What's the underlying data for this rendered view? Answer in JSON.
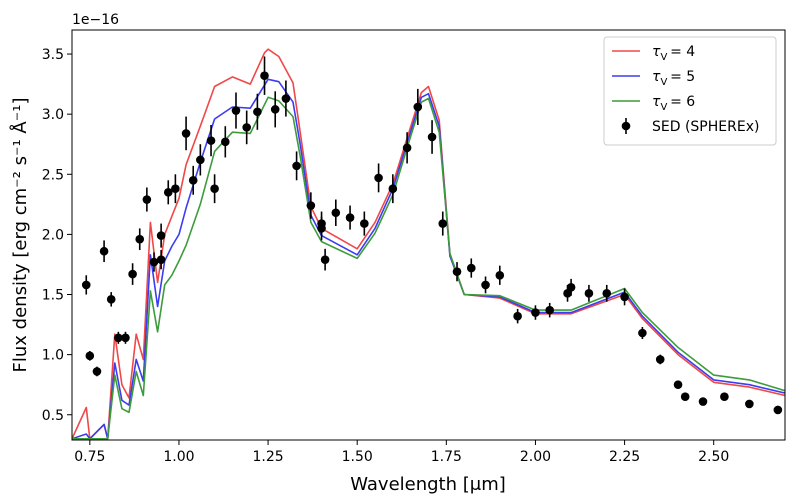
{
  "chart_data": {
    "type": "line",
    "xlabel": "Wavelength [μm]",
    "ylabel": "Flux density [erg cm⁻² s⁻¹ Å⁻¹]",
    "y_offset_label": "1e−16",
    "xlim": [
      0.7,
      2.7
    ],
    "ylim": [
      0.29,
      3.7
    ],
    "x_ticks": [
      0.75,
      1.0,
      1.25,
      1.5,
      1.75,
      2.0,
      2.25,
      2.5
    ],
    "y_ticks": [
      0.5,
      1.0,
      1.5,
      2.0,
      2.5,
      3.0,
      3.5
    ],
    "legend_position": "top-right",
    "series": [
      {
        "name": "τ_V = 4",
        "label_var": "τ",
        "label_sub": "V",
        "label_value": "= 4",
        "color": "#f04848",
        "points": [
          [
            0.7,
            0.3
          ],
          [
            0.74,
            0.56
          ],
          [
            0.75,
            0.3
          ],
          [
            0.79,
            0.42
          ],
          [
            0.8,
            0.3
          ],
          [
            0.82,
            1.17
          ],
          [
            0.84,
            0.75
          ],
          [
            0.86,
            0.64
          ],
          [
            0.88,
            1.17
          ],
          [
            0.9,
            0.96
          ],
          [
            0.92,
            2.1
          ],
          [
            0.94,
            1.6
          ],
          [
            0.96,
            2.0
          ],
          [
            0.98,
            2.15
          ],
          [
            1.0,
            2.3
          ],
          [
            1.02,
            2.58
          ],
          [
            1.06,
            2.9
          ],
          [
            1.1,
            3.23
          ],
          [
            1.15,
            3.31
          ],
          [
            1.2,
            3.25
          ],
          [
            1.24,
            3.51
          ],
          [
            1.25,
            3.54
          ],
          [
            1.28,
            3.48
          ],
          [
            1.32,
            3.26
          ],
          [
            1.34,
            2.85
          ],
          [
            1.37,
            2.23
          ],
          [
            1.4,
            2.05
          ],
          [
            1.5,
            1.88
          ],
          [
            1.55,
            2.1
          ],
          [
            1.6,
            2.42
          ],
          [
            1.64,
            2.8
          ],
          [
            1.68,
            3.18
          ],
          [
            1.7,
            3.23
          ],
          [
            1.73,
            2.95
          ],
          [
            1.76,
            1.84
          ],
          [
            1.8,
            1.5
          ],
          [
            1.9,
            1.47
          ],
          [
            2.0,
            1.34
          ],
          [
            2.1,
            1.34
          ],
          [
            2.25,
            1.5
          ],
          [
            2.3,
            1.3
          ],
          [
            2.4,
            1.0
          ],
          [
            2.5,
            0.77
          ],
          [
            2.6,
            0.73
          ],
          [
            2.7,
            0.66
          ]
        ]
      },
      {
        "name": "τ_V = 5",
        "label_var": "τ",
        "label_sub": "V",
        "label_value": "= 5",
        "color": "#3c3cf0",
        "points": [
          [
            0.7,
            0.3
          ],
          [
            0.74,
            0.34
          ],
          [
            0.75,
            0.3
          ],
          [
            0.79,
            0.42
          ],
          [
            0.8,
            0.3
          ],
          [
            0.82,
            0.93
          ],
          [
            0.84,
            0.62
          ],
          [
            0.86,
            0.58
          ],
          [
            0.88,
            0.96
          ],
          [
            0.9,
            0.78
          ],
          [
            0.92,
            1.83
          ],
          [
            0.94,
            1.4
          ],
          [
            0.96,
            1.78
          ],
          [
            0.98,
            1.9
          ],
          [
            1.0,
            2.0
          ],
          [
            1.02,
            2.22
          ],
          [
            1.06,
            2.6
          ],
          [
            1.1,
            2.96
          ],
          [
            1.15,
            3.06
          ],
          [
            1.2,
            3.05
          ],
          [
            1.25,
            3.29
          ],
          [
            1.28,
            3.27
          ],
          [
            1.32,
            3.1
          ],
          [
            1.34,
            2.75
          ],
          [
            1.37,
            2.16
          ],
          [
            1.4,
            1.99
          ],
          [
            1.5,
            1.83
          ],
          [
            1.55,
            2.05
          ],
          [
            1.6,
            2.38
          ],
          [
            1.64,
            2.76
          ],
          [
            1.68,
            3.14
          ],
          [
            1.7,
            3.17
          ],
          [
            1.73,
            2.9
          ],
          [
            1.76,
            1.82
          ],
          [
            1.8,
            1.5
          ],
          [
            1.9,
            1.48
          ],
          [
            2.0,
            1.35
          ],
          [
            2.1,
            1.35
          ],
          [
            2.25,
            1.52
          ],
          [
            2.3,
            1.32
          ],
          [
            2.4,
            1.02
          ],
          [
            2.5,
            0.79
          ],
          [
            2.6,
            0.75
          ],
          [
            2.7,
            0.68
          ]
        ]
      },
      {
        "name": "τ_V = 6",
        "label_var": "τ",
        "label_sub": "V",
        "label_value": "= 6",
        "color": "#3c9c3c",
        "points": [
          [
            0.7,
            0.3
          ],
          [
            0.74,
            0.3
          ],
          [
            0.75,
            0.3
          ],
          [
            0.79,
            0.3
          ],
          [
            0.8,
            0.3
          ],
          [
            0.82,
            0.83
          ],
          [
            0.84,
            0.55
          ],
          [
            0.86,
            0.52
          ],
          [
            0.88,
            0.86
          ],
          [
            0.9,
            0.66
          ],
          [
            0.92,
            1.53
          ],
          [
            0.94,
            1.19
          ],
          [
            0.96,
            1.58
          ],
          [
            0.98,
            1.66
          ],
          [
            1.0,
            1.78
          ],
          [
            1.02,
            1.91
          ],
          [
            1.06,
            2.25
          ],
          [
            1.1,
            2.69
          ],
          [
            1.15,
            2.85
          ],
          [
            1.2,
            2.84
          ],
          [
            1.25,
            3.14
          ],
          [
            1.28,
            3.11
          ],
          [
            1.32,
            2.98
          ],
          [
            1.34,
            2.65
          ],
          [
            1.37,
            2.1
          ],
          [
            1.4,
            1.94
          ],
          [
            1.5,
            1.8
          ],
          [
            1.55,
            2.01
          ],
          [
            1.6,
            2.33
          ],
          [
            1.64,
            2.72
          ],
          [
            1.68,
            3.1
          ],
          [
            1.7,
            3.13
          ],
          [
            1.73,
            2.85
          ],
          [
            1.76,
            1.84
          ],
          [
            1.8,
            1.5
          ],
          [
            1.9,
            1.49
          ],
          [
            2.0,
            1.37
          ],
          [
            2.1,
            1.37
          ],
          [
            2.25,
            1.55
          ],
          [
            2.3,
            1.35
          ],
          [
            2.4,
            1.06
          ],
          [
            2.5,
            0.83
          ],
          [
            2.6,
            0.79
          ],
          [
            2.7,
            0.7
          ]
        ]
      }
    ],
    "scatter": {
      "name": "SED (SPHEREx)",
      "color": "#000000",
      "points": [
        [
          0.74,
          1.58,
          0.08
        ],
        [
          0.75,
          0.99,
          0.04
        ],
        [
          0.77,
          0.86,
          0.04
        ],
        [
          0.79,
          1.86,
          0.09
        ],
        [
          0.81,
          1.46,
          0.06
        ],
        [
          0.83,
          1.14,
          0.05
        ],
        [
          0.85,
          1.14,
          0.05
        ],
        [
          0.87,
          1.67,
          0.09
        ],
        [
          0.89,
          1.96,
          0.09
        ],
        [
          0.91,
          2.29,
          0.1
        ],
        [
          0.93,
          1.77,
          0.08
        ],
        [
          0.95,
          1.79,
          0.08
        ],
        [
          0.95,
          1.99,
          0.1
        ],
        [
          0.97,
          2.35,
          0.1
        ],
        [
          0.99,
          2.38,
          0.12
        ],
        [
          1.02,
          2.84,
          0.14
        ],
        [
          1.04,
          2.45,
          0.12
        ],
        [
          1.06,
          2.62,
          0.13
        ],
        [
          1.09,
          2.78,
          0.13
        ],
        [
          1.1,
          2.38,
          0.12
        ],
        [
          1.13,
          2.77,
          0.13
        ],
        [
          1.16,
          3.03,
          0.15
        ],
        [
          1.19,
          2.89,
          0.14
        ],
        [
          1.22,
          3.02,
          0.15
        ],
        [
          1.24,
          3.32,
          0.16
        ],
        [
          1.27,
          3.04,
          0.15
        ],
        [
          1.3,
          3.13,
          0.15
        ],
        [
          1.33,
          2.57,
          0.12
        ],
        [
          1.37,
          2.24,
          0.11
        ],
        [
          1.4,
          2.09,
          0.1
        ],
        [
          1.4,
          2.05,
          0.1
        ],
        [
          1.41,
          1.79,
          0.09
        ],
        [
          1.44,
          2.18,
          0.11
        ],
        [
          1.48,
          2.14,
          0.1
        ],
        [
          1.52,
          2.09,
          0.1
        ],
        [
          1.56,
          2.47,
          0.12
        ],
        [
          1.6,
          2.38,
          0.12
        ],
        [
          1.64,
          2.72,
          0.13
        ],
        [
          1.67,
          3.06,
          0.15
        ],
        [
          1.71,
          2.81,
          0.14
        ],
        [
          1.74,
          2.09,
          0.1
        ],
        [
          1.78,
          1.69,
          0.08
        ],
        [
          1.82,
          1.72,
          0.08
        ],
        [
          1.86,
          1.58,
          0.07
        ],
        [
          1.9,
          1.66,
          0.08
        ],
        [
          1.95,
          1.32,
          0.06
        ],
        [
          2.0,
          1.35,
          0.06
        ],
        [
          2.04,
          1.37,
          0.06
        ],
        [
          2.09,
          1.51,
          0.07
        ],
        [
          2.1,
          1.56,
          0.07
        ],
        [
          2.15,
          1.51,
          0.07
        ],
        [
          2.2,
          1.51,
          0.07
        ],
        [
          2.25,
          1.48,
          0.07
        ],
        [
          2.3,
          1.18,
          0.05
        ],
        [
          2.35,
          0.96,
          0.04
        ],
        [
          2.4,
          0.75,
          0.03
        ],
        [
          2.42,
          0.65,
          0.03
        ],
        [
          2.47,
          0.61,
          0.03
        ],
        [
          2.53,
          0.65,
          0.03
        ],
        [
          2.6,
          0.59,
          0.03
        ],
        [
          2.68,
          0.54,
          0.03
        ]
      ]
    }
  }
}
